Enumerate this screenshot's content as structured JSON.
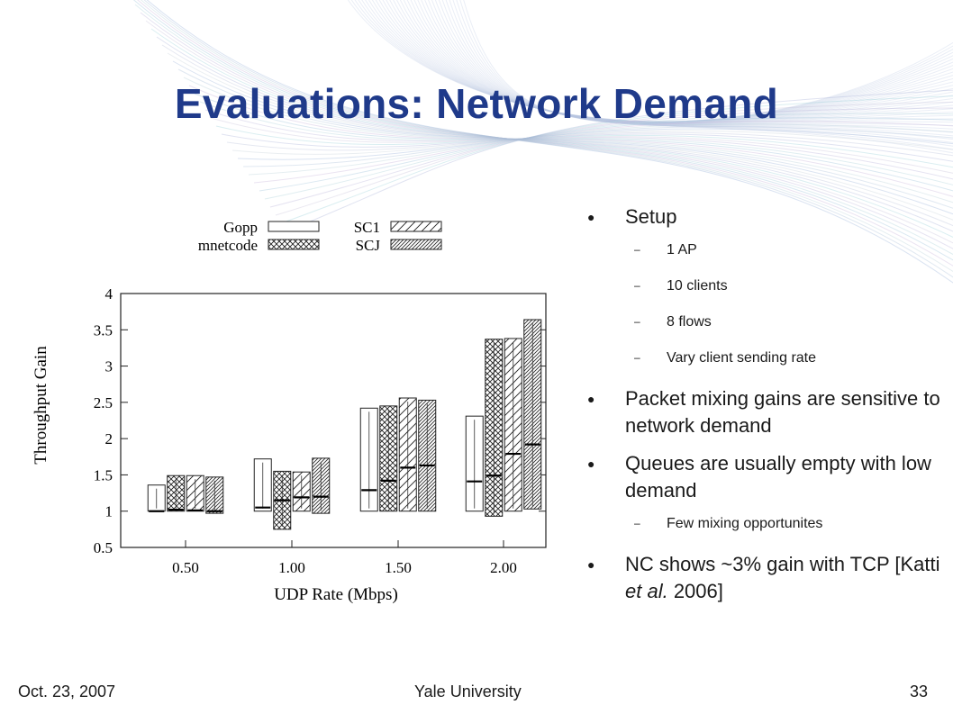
{
  "slide": {
    "title": "Evaluations: Network Demand",
    "footer_left": "Oct. 23, 2007",
    "footer_center": "Yale University",
    "page_number": "33",
    "accent_color": "#1f3a8a"
  },
  "bullets": [
    {
      "level": 1,
      "text": "Setup"
    },
    {
      "level": 2,
      "text": "1 AP"
    },
    {
      "level": 2,
      "text": "10 clients"
    },
    {
      "level": 2,
      "text": "8 flows"
    },
    {
      "level": 2,
      "text": "Vary client sending rate"
    },
    {
      "level": 1,
      "text": "Packet mixing gains are sensitive to network demand"
    },
    {
      "level": 1,
      "text": "Queues are usually empty with low demand"
    },
    {
      "level": 2,
      "text": "Few mixing opportunites"
    },
    {
      "level": 1,
      "text": "NC shows ~3% gain with TCP [Katti ",
      "italic": "et al.",
      "tail": " 2006]"
    }
  ],
  "chart_data": {
    "type": "bar",
    "xlabel": "UDP Rate (Mbps)",
    "ylabel": "Throughput Gain",
    "ylim": [
      0.5,
      4
    ],
    "yticks": [
      "0.5",
      "1",
      "1.5",
      "2",
      "2.5",
      "3",
      "3.5",
      "4"
    ],
    "categories": [
      "0.50",
      "1.00",
      "1.50",
      "2.00"
    ],
    "legend_position": "top",
    "series": [
      {
        "name": "Gopp",
        "pattern": "none",
        "max": [
          1.36,
          1.72,
          2.42,
          2.31
        ],
        "median": [
          1.0,
          1.05,
          1.29,
          1.41
        ],
        "min": [
          1.0,
          1.0,
          1.0,
          1.0
        ]
      },
      {
        "name": "mnetcode",
        "pattern": "crosshatch",
        "max": [
          1.49,
          1.55,
          2.45,
          3.37
        ],
        "median": [
          1.02,
          1.15,
          1.42,
          1.49
        ],
        "min": [
          1.0,
          0.75,
          1.0,
          0.93
        ]
      },
      {
        "name": "SC1",
        "pattern": "diagonal",
        "max": [
          1.49,
          1.54,
          2.56,
          3.38
        ],
        "median": [
          1.01,
          1.19,
          1.6,
          1.79
        ],
        "min": [
          1.0,
          1.0,
          1.0,
          1.0
        ]
      },
      {
        "name": "SCJ",
        "pattern": "dense-diagonal",
        "max": [
          1.47,
          1.73,
          2.53,
          3.64
        ],
        "median": [
          1.0,
          1.2,
          1.63,
          1.92
        ],
        "min": [
          0.97,
          0.97,
          1.0,
          1.03
        ]
      }
    ]
  }
}
